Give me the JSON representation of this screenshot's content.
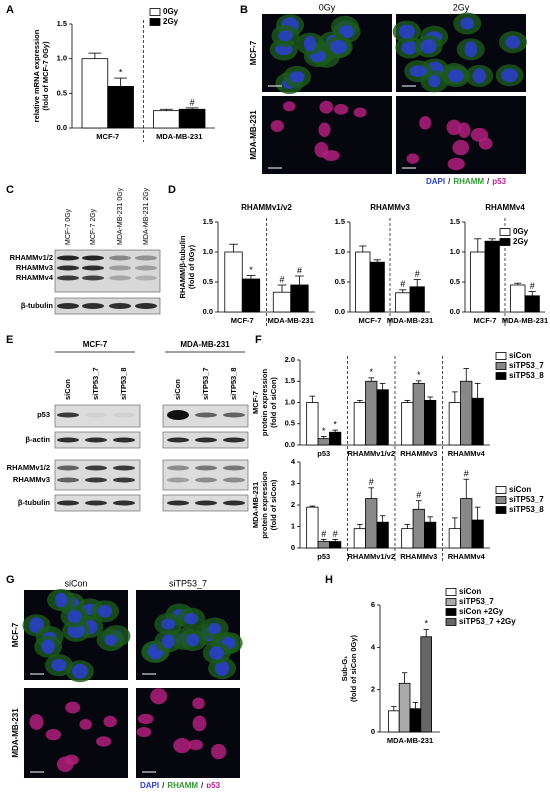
{
  "panel_labels": [
    "A",
    "B",
    "C",
    "D",
    "E",
    "F",
    "G",
    "H"
  ],
  "microscopy": [
    {
      "columns": [
        "0Gy",
        "2Gy"
      ],
      "rows": [
        "MCF-7",
        "MDA-MB-231"
      ],
      "legend": [
        {
          "text": "DAPI",
          "color": "#2a3fd0"
        },
        {
          "text": "/",
          "color": "#333333"
        },
        {
          "text": "RHAMM",
          "color": "#2f9a2f"
        },
        {
          "text": "/",
          "color": "#333333"
        },
        {
          "text": "p53",
          "color": "#c0208a"
        }
      ]
    },
    {
      "columns": [
        "siCon",
        "siTP53_7"
      ],
      "rows": [
        "MCF-7",
        "MDA-MB-231"
      ],
      "legend": [
        {
          "text": "DAPI",
          "color": "#2a3fd0"
        },
        {
          "text": "/",
          "color": "#333333"
        },
        {
          "text": "RHAMM",
          "color": "#2f9a2f"
        },
        {
          "text": "/",
          "color": "#333333"
        },
        {
          "text": "p53",
          "color": "#c0208a"
        }
      ]
    }
  ],
  "blots": [
    {
      "lanes": [
        "MCF-7 0Gy",
        "MCF-7 2Gy",
        "MDA-MB-231 0Gy",
        "MDA-MB-231 2Gy"
      ],
      "rows": [
        [
          "RHAMMv1/2",
          "RHAMMv3",
          "RHAMMv4"
        ],
        [
          "β-tubulin"
        ]
      ]
    },
    {
      "groups": [
        "MCF-7",
        "MDA-MB-231"
      ],
      "lanes": [
        "siCon",
        "siTP53_7",
        "siTP53_8",
        "siCon",
        "siTP53_7",
        "siTP53_8"
      ],
      "rows": [
        [
          "p53"
        ],
        [
          "β-actin"
        ],
        [
          "RHAMMv1/2",
          "RHAMMv3"
        ],
        [
          "β-tubulin"
        ]
      ]
    }
  ],
  "chart_data": [
    {
      "type": "bar",
      "ylabel": [
        "relative mRNA expression",
        "(fold of MCF-7 0Gy)"
      ],
      "categories": [
        "MCF-7",
        "MDA-MB-231"
      ],
      "divider": true,
      "legend": "upper-right",
      "ylim": [
        0,
        1.5
      ],
      "yticks": [
        {
          "value": 0,
          "label": "0.0"
        },
        0.5,
        {
          "value": 1,
          "label": "1.0"
        },
        1.5
      ],
      "series": [
        {
          "name": "0Gy",
          "color": "#ffffff",
          "values": [
            1.0,
            0.25
          ],
          "errors": [
            0.08,
            0.02
          ]
        },
        {
          "name": "2Gy",
          "color": "#000000",
          "values": [
            0.6,
            0.27
          ],
          "errors": [
            0.12,
            0.02
          ],
          "sig": [
            "*",
            "#"
          ]
        }
      ]
    },
    {
      "type": "bar",
      "title": "RHAMMv1/v2",
      "ylabel": [
        "RHAMM/β-tubulin",
        "(fold of 0Gy)"
      ],
      "categories": [
        "MCF-7",
        "MDA-MB-231"
      ],
      "divider": true,
      "ylim": [
        0,
        1.5
      ],
      "yticks": [
        {
          "value": 0,
          "label": "0.0"
        },
        0.5,
        {
          "value": 1,
          "label": "1.0"
        },
        1.5
      ],
      "series": [
        {
          "color": "#ffffff",
          "values": [
            1.0,
            0.33
          ],
          "errors": [
            0.13,
            0.12
          ],
          "sig": [
            null,
            "#"
          ]
        },
        {
          "color": "#000000",
          "values": [
            0.55,
            0.45
          ],
          "errors": [
            0.06,
            0.15
          ],
          "sig": [
            "*",
            "#"
          ]
        }
      ]
    },
    {
      "type": "bar",
      "title": "RHAMMv3",
      "categories": [
        "MCF-7",
        "MDA-MB-231"
      ],
      "divider": true,
      "ylim": [
        0,
        1.5
      ],
      "yticks": [
        {
          "value": 0,
          "label": "0.0"
        },
        0.5,
        {
          "value": 1,
          "label": "1.0"
        },
        1.5
      ],
      "series": [
        {
          "color": "#ffffff",
          "values": [
            1.0,
            0.32
          ],
          "errors": [
            0.1,
            0.05
          ],
          "sig": [
            null,
            "#"
          ]
        },
        {
          "color": "#000000",
          "values": [
            0.83,
            0.42
          ],
          "errors": [
            0.04,
            0.12
          ],
          "sig": [
            null,
            "#"
          ]
        }
      ]
    },
    {
      "type": "bar",
      "title": "RHAMMv4",
      "categories": [
        "MCF-7",
        "MDA-MB-231"
      ],
      "divider": true,
      "legend": "upper-right",
      "ylim": [
        0,
        1.5
      ],
      "yticks": [
        {
          "value": 0,
          "label": "0.0"
        },
        0.5,
        {
          "value": 1,
          "label": "1.0"
        },
        1.5
      ],
      "series": [
        {
          "name": "0Gy",
          "color": "#ffffff",
          "values": [
            1.0,
            0.45
          ],
          "errors": [
            0.22,
            0.03
          ]
        },
        {
          "name": "2Gy",
          "color": "#000000",
          "values": [
            1.18,
            0.27
          ],
          "errors": [
            0.04,
            0.07
          ],
          "sig": [
            null,
            "#"
          ]
        }
      ]
    },
    {
      "type": "bar",
      "ylabel": [
        "MCF-7",
        "protein expression",
        "(fold of siCon)"
      ],
      "categories": [
        "p53",
        "RHAMMv1/v2",
        "RHAMMv3",
        "RHAMMv4"
      ],
      "divider": true,
      "legend": "right",
      "ylim": [
        0,
        2
      ],
      "yticks": [
        {
          "value": 0,
          "label": "0.0"
        },
        0.5,
        {
          "value": 1,
          "label": "1.0"
        },
        1.5,
        {
          "value": 2,
          "label": "2.0"
        }
      ],
      "series": [
        {
          "name": "siCon",
          "color": "#ffffff",
          "values": [
            1.0,
            1.0,
            1.0,
            1.0
          ],
          "errors": [
            0.15,
            0.05,
            0.05,
            0.25
          ]
        },
        {
          "name": "siTP53_7",
          "color": "#888888",
          "values": [
            0.15,
            1.5,
            1.45,
            1.5
          ],
          "errors": [
            0.05,
            0.08,
            0.06,
            0.3
          ],
          "sig": [
            "*",
            "*",
            "*",
            null
          ]
        },
        {
          "name": "siTP53_8",
          "color": "#000000",
          "values": [
            0.3,
            1.3,
            1.05,
            1.1
          ],
          "errors": [
            0.05,
            0.15,
            0.08,
            0.35
          ],
          "sig": [
            "*",
            null,
            null,
            null
          ]
        }
      ]
    },
    {
      "type": "bar",
      "ylabel": [
        "MDA-MB-231",
        "protein expression",
        "(fold of siCon)"
      ],
      "categories": [
        "p53",
        "RHAMMv1/v2",
        "RHAMMv3",
        "RHAMMv4"
      ],
      "divider": true,
      "legend": "right",
      "ylim": [
        0,
        4
      ],
      "yticks": [
        0,
        1,
        2,
        3,
        4
      ],
      "series": [
        {
          "name": "siCon",
          "color": "#ffffff",
          "values": [
            1.9,
            0.9,
            0.9,
            0.9
          ],
          "errors": [
            0.05,
            0.2,
            0.2,
            0.5
          ]
        },
        {
          "name": "siTP53_7",
          "color": "#888888",
          "values": [
            0.3,
            2.3,
            1.8,
            2.3
          ],
          "errors": [
            0.1,
            0.5,
            0.4,
            0.9
          ],
          "sig": [
            "#",
            "#",
            "#",
            "#"
          ]
        },
        {
          "name": "siTP53_8",
          "color": "#000000",
          "values": [
            0.3,
            1.2,
            1.2,
            1.3
          ],
          "errors": [
            0.1,
            0.3,
            0.25,
            0.6
          ],
          "sig": [
            "#",
            null,
            null,
            null
          ]
        }
      ]
    },
    {
      "type": "bar",
      "ylabel": [
        "Sub-G₁",
        "(fold of siCon 0Gy)"
      ],
      "categories": [
        "MDA-MB-231"
      ],
      "legend": "upper-right",
      "ylim": [
        0,
        6
      ],
      "yticks": [
        0,
        2,
        4,
        6
      ],
      "series": [
        {
          "name": "siCon",
          "color": "#ffffff",
          "values": [
            1.0
          ],
          "errors": [
            0.2
          ]
        },
        {
          "name": "siTP53_7",
          "color": "#aaaaaa",
          "values": [
            2.3
          ],
          "errors": [
            0.5
          ]
        },
        {
          "name": "siCon +2Gy",
          "color": "#000000",
          "values": [
            1.1
          ],
          "errors": [
            0.3
          ]
        },
        {
          "name": "siTP53_7 +2Gy",
          "color": "#666666",
          "values": [
            4.5
          ],
          "errors": [
            0.35
          ],
          "sig": [
            "*"
          ]
        }
      ]
    }
  ]
}
